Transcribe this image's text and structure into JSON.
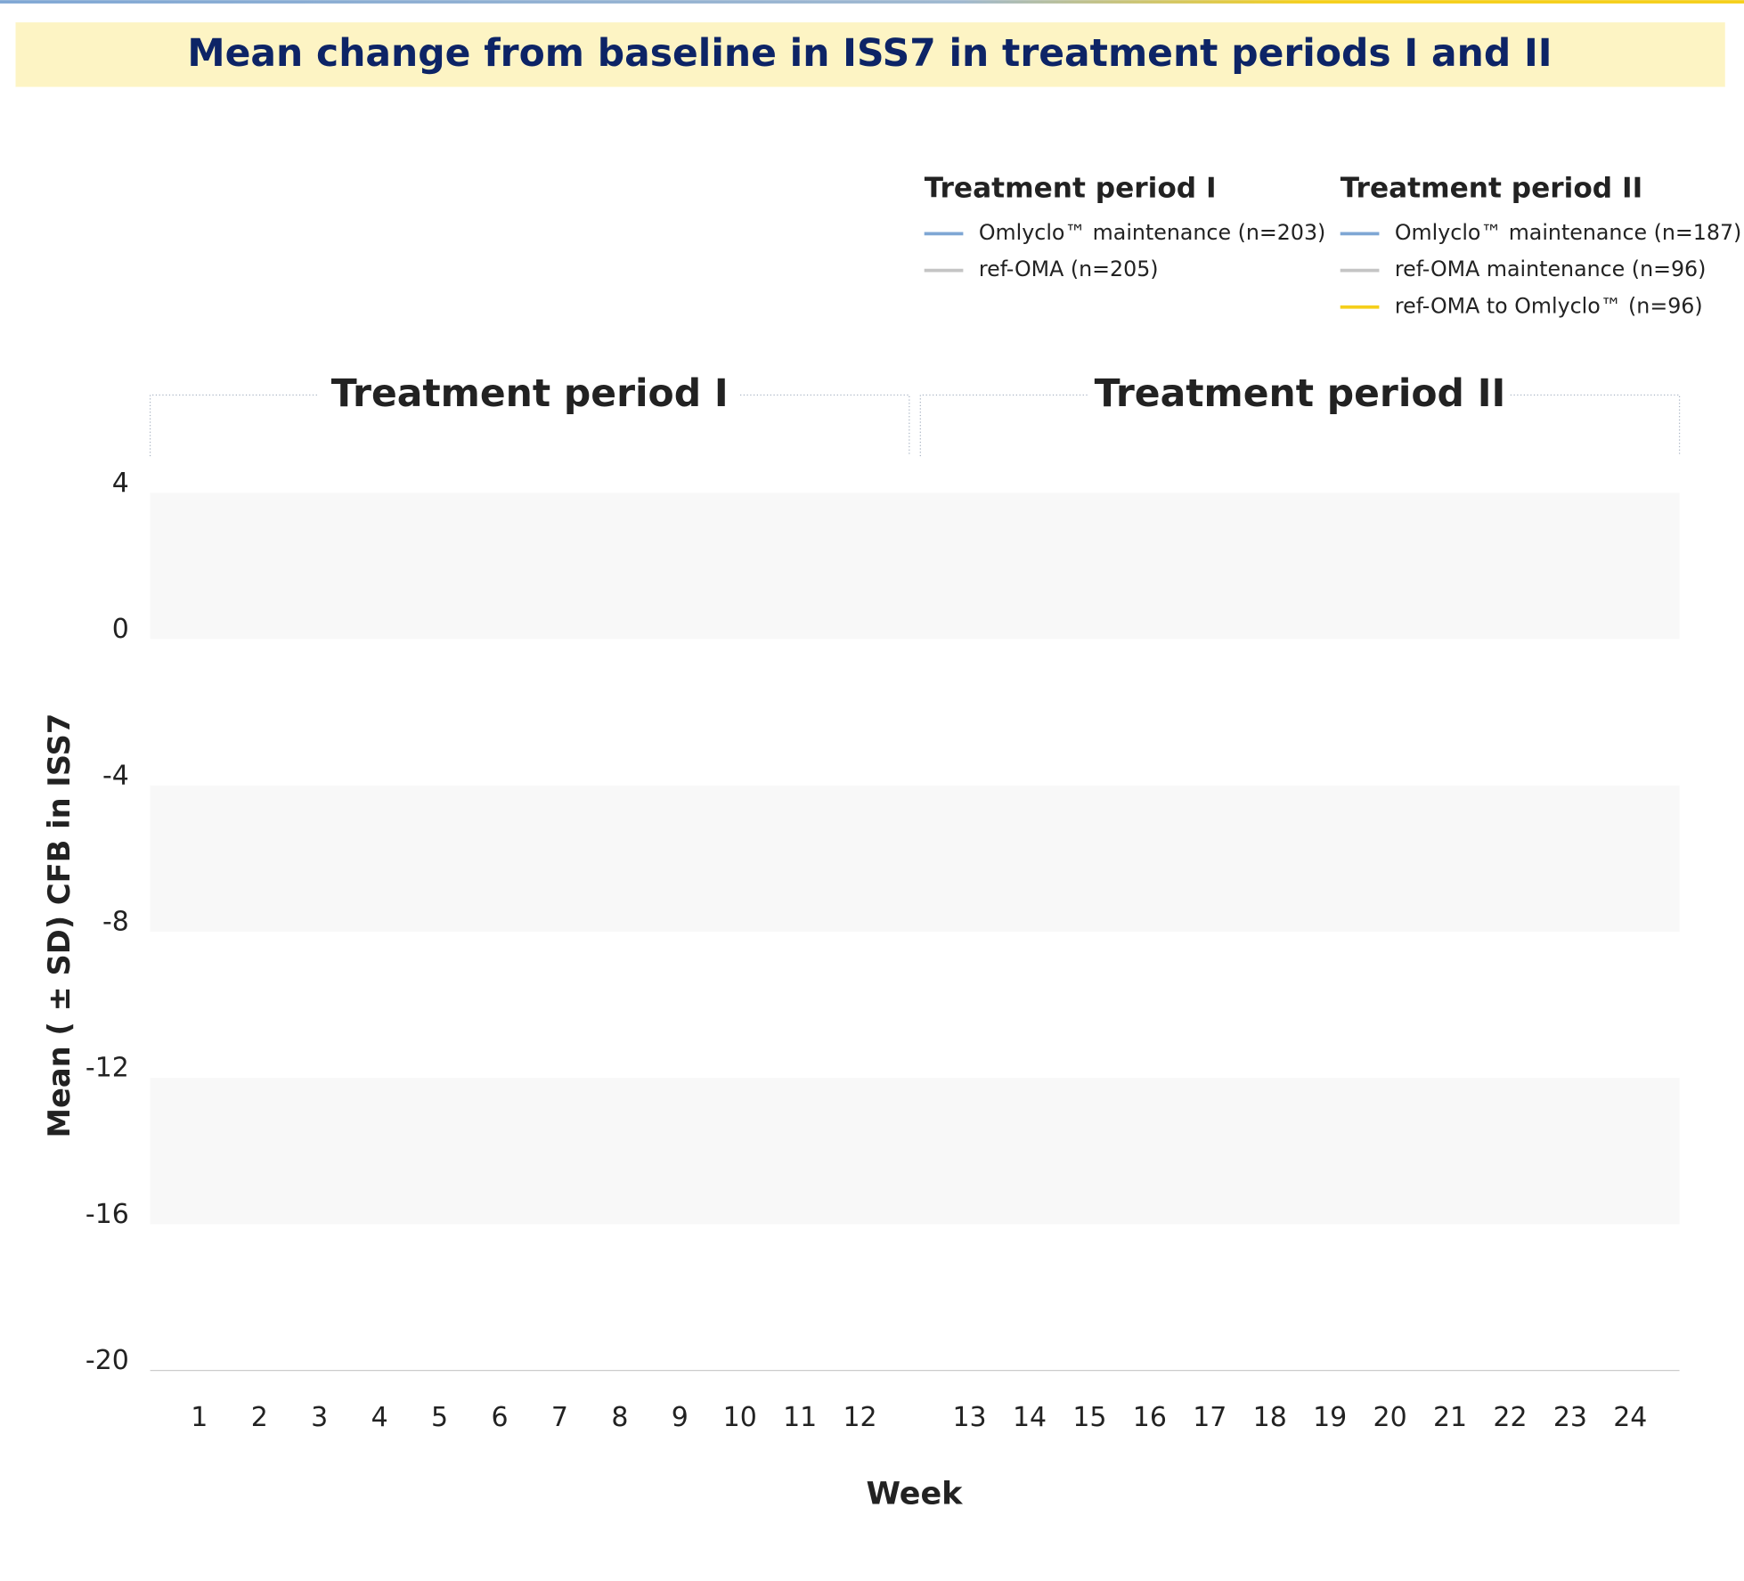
{
  "chart_data": {
    "type": "line",
    "title": "Mean change from baseline in ISS7 in treatment periods I and II",
    "ylabel": "Mean ( ± SD) CFB in ISS7",
    "xlabel": "Week",
    "ylim": [
      -20,
      4
    ],
    "yticks": [
      4,
      0,
      -4,
      -8,
      -12,
      -16,
      -20
    ],
    "panels": [
      {
        "title": "Treatment period I",
        "x": [
          1,
          2,
          3,
          4,
          5,
          6,
          7,
          8,
          9,
          10,
          11,
          12
        ]
      },
      {
        "title": "Treatment period II",
        "x": [
          13,
          14,
          15,
          16,
          17,
          18,
          19,
          20,
          21,
          22,
          23,
          24
        ]
      }
    ],
    "legend": [
      {
        "title": "Treatment period I",
        "series": [
          {
            "name": "Omlyclo™ maintenance (n=203)",
            "color": "#7fa7d4"
          },
          {
            "name": "ref-OMA (n=205)",
            "color": "#c4c4c4"
          }
        ]
      },
      {
        "title": "Treatment period II",
        "series": [
          {
            "name": "Omlyclo™ maintenance (n=187)",
            "color": "#7fa7d4"
          },
          {
            "name": "ref-OMA maintenance (n=96)",
            "color": "#c4c4c4"
          },
          {
            "name": "ref-OMA to Omlyclo™ (n=96)",
            "color": "#f5cf1a"
          }
        ]
      }
    ]
  }
}
